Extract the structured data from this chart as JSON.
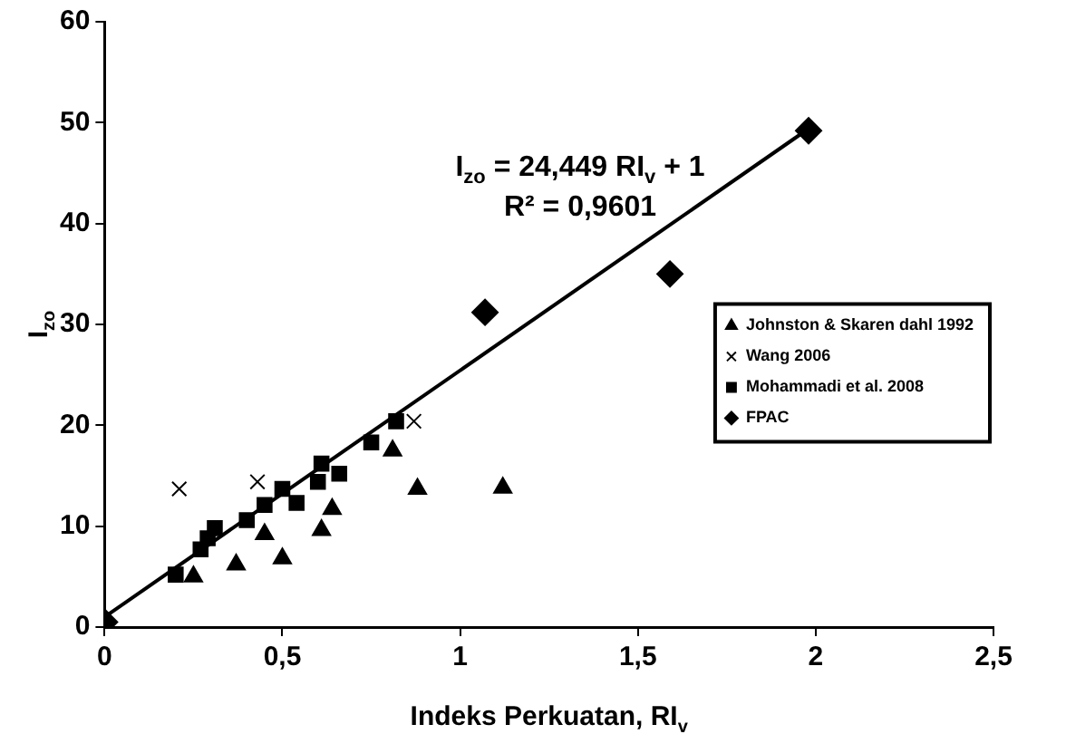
{
  "chart_data": {
    "type": "scatter",
    "xlabel": "Indeks Perkuatan, RI$_{v}$",
    "ylabel": "I$_{zo}$",
    "xlim": [
      0,
      2.5
    ],
    "xticks": [
      0,
      {
        "value": 0.5,
        "label": "0,5"
      },
      1,
      {
        "value": 1.5,
        "label": "1,5"
      },
      2,
      {
        "value": 2.5,
        "label": "2,5"
      }
    ],
    "ylim": [
      0,
      60
    ],
    "yticks": [
      0,
      10,
      20,
      30,
      40,
      50,
      60
    ],
    "grid": false,
    "legend": "right",
    "annotations": [
      "I$_{zo}$ = 24,449 RI$_{v}$ + 1",
      "R² = 0,9601"
    ],
    "series": [
      {
        "name": "Johnston & Skaren dahl 1992",
        "color": "#000000",
        "marker": "triangle",
        "x": [
          0.25,
          0.37,
          0.45,
          0.5,
          0.61,
          0.64,
          0.81,
          0.88,
          1.12
        ],
        "values": [
          5,
          6.2,
          9.2,
          6.8,
          9.6,
          11.7,
          17.5,
          13.7,
          13.8
        ]
      },
      {
        "name": "Wang 2006",
        "color": "#000000",
        "marker": "cross",
        "x": [
          0.21,
          0.43,
          0.87
        ],
        "values": [
          13.7,
          14.4,
          20.4
        ]
      },
      {
        "name": "Mohammadi et al. 2008",
        "color": "#000000",
        "marker": "square",
        "x": [
          0.2,
          0.27,
          0.29,
          0.31,
          0.4,
          0.45,
          0.5,
          0.54,
          0.6,
          0.61,
          0.66,
          0.75,
          0.82
        ],
        "values": [
          5.2,
          7.7,
          8.8,
          9.8,
          10.6,
          12.1,
          13.7,
          12.3,
          14.4,
          16.2,
          15.2,
          18.3,
          20.4
        ]
      },
      {
        "name": "FPAC",
        "color": "#000000",
        "marker": "diamond",
        "x": [
          0,
          1.07,
          1.59,
          1.98
        ],
        "values": [
          0.5,
          31.2,
          35,
          49.2
        ]
      },
      {
        "type": "line",
        "color": "#000000",
        "marker": "none",
        "line_style": "solid",
        "x": [
          0,
          1.98
        ],
        "values": [
          1,
          49.4
        ]
      }
    ]
  }
}
